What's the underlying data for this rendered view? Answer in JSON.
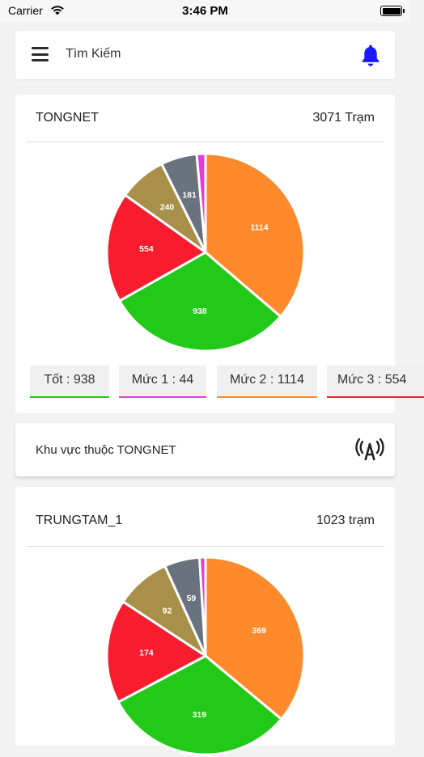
{
  "status_bar": {
    "carrier": "Carrier",
    "time": "3:46 PM"
  },
  "search": {
    "placeholder": "Tìm Kiếm"
  },
  "colors": {
    "good": "#22c918",
    "level1": "#e23bd6",
    "level2": "#ff8a2c",
    "level3": "#f81d2e",
    "level4": "#a8904a",
    "level5": "#6a737d",
    "bell": "#1a1aff"
  },
  "summary": {
    "title": "TONGNET",
    "count": "3071 Trạm",
    "legend": [
      {
        "label": "Tốt : 938",
        "color": "#22c918"
      },
      {
        "label": "Mức 1 : 44",
        "color": "#e23bd6"
      },
      {
        "label": "Mức 2 : 1114",
        "color": "#ff8a2c"
      },
      {
        "label": "Mức 3 : 554",
        "color": "#f81d2e"
      }
    ]
  },
  "region": {
    "label": "Khu vực thuộc TONGNET",
    "icon": "antenna-icon"
  },
  "station": {
    "title": "TRUNGTAM_1",
    "count": "1023 trạm"
  },
  "chart_data": [
    {
      "type": "pie",
      "title": "TONGNET",
      "slices": [
        {
          "label": "1114",
          "value": 1114,
          "color": "#ff8a2c"
        },
        {
          "label": "938",
          "value": 938,
          "color": "#22c918"
        },
        {
          "label": "554",
          "value": 554,
          "color": "#f81d2e"
        },
        {
          "label": "240",
          "value": 240,
          "color": "#a8904a"
        },
        {
          "label": "181",
          "value": 181,
          "color": "#6a737d"
        },
        {
          "label": "",
          "value": 44,
          "color": "#e23bd6"
        }
      ]
    },
    {
      "type": "pie",
      "title": "TRUNGTAM_1",
      "slices": [
        {
          "label": "369",
          "value": 369,
          "color": "#ff8a2c"
        },
        {
          "label": "319",
          "value": 319,
          "color": "#22c918"
        },
        {
          "label": "174",
          "value": 174,
          "color": "#f81d2e"
        },
        {
          "label": "92",
          "value": 92,
          "color": "#a8904a"
        },
        {
          "label": "59",
          "value": 59,
          "color": "#6a737d"
        },
        {
          "label": "",
          "value": 10,
          "color": "#e23bd6"
        }
      ]
    }
  ]
}
